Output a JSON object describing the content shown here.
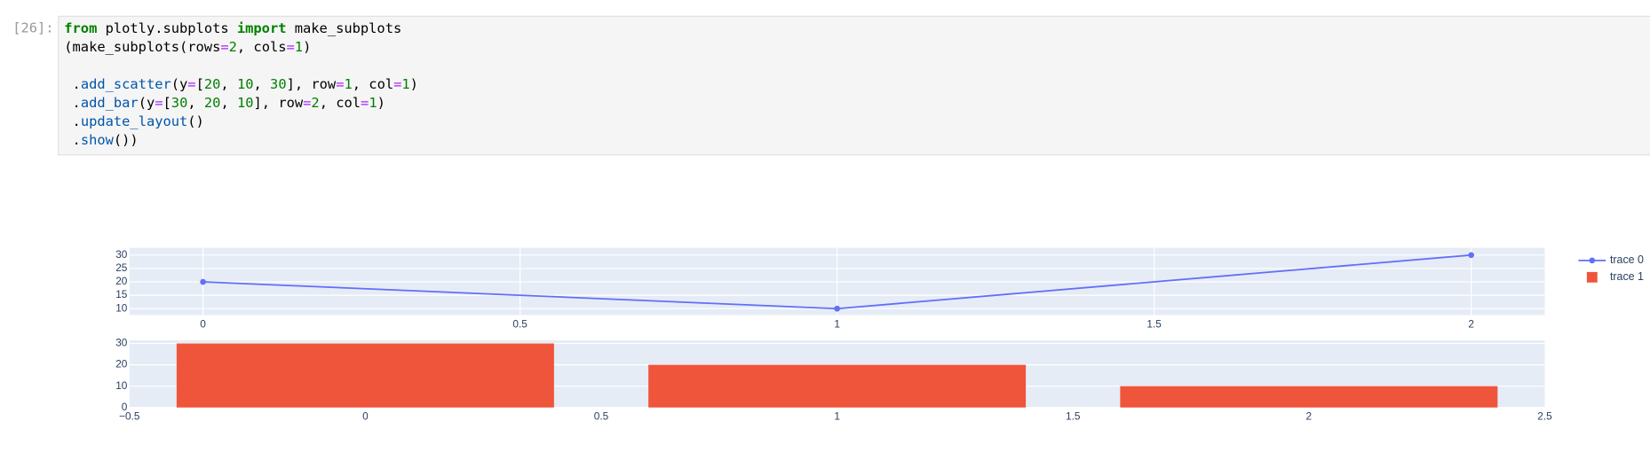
{
  "cells": [
    {
      "prompt": "[26]:",
      "lines": [
        [
          {
            "text": "from",
            "color": "#008000",
            "bold": true
          },
          {
            "text": " plotly.subplots ",
            "color": "#000000"
          },
          {
            "text": "import",
            "color": "#008000",
            "bold": true
          },
          {
            "text": " make_subplots",
            "color": "#000000"
          }
        ],
        [
          {
            "text": "(make_subplots(rows",
            "color": "#000000"
          },
          {
            "text": "=",
            "color": "#aa22ff"
          },
          {
            "text": "2",
            "color": "#008000"
          },
          {
            "text": ", cols",
            "color": "#000000"
          },
          {
            "text": "=",
            "color": "#aa22ff"
          },
          {
            "text": "1",
            "color": "#008000"
          },
          {
            "text": ")",
            "color": "#000000"
          }
        ],
        [],
        [
          {
            "text": " .",
            "color": "#000000"
          },
          {
            "text": "add_scatter",
            "color": "#0055aa"
          },
          {
            "text": "(y",
            "color": "#000000"
          },
          {
            "text": "=",
            "color": "#aa22ff"
          },
          {
            "text": "[",
            "color": "#000000"
          },
          {
            "text": "20",
            "color": "#008000"
          },
          {
            "text": ", ",
            "color": "#000000"
          },
          {
            "text": "10",
            "color": "#008000"
          },
          {
            "text": ", ",
            "color": "#000000"
          },
          {
            "text": "30",
            "color": "#008000"
          },
          {
            "text": "], row",
            "color": "#000000"
          },
          {
            "text": "=",
            "color": "#aa22ff"
          },
          {
            "text": "1",
            "color": "#008000"
          },
          {
            "text": ", col",
            "color": "#000000"
          },
          {
            "text": "=",
            "color": "#aa22ff"
          },
          {
            "text": "1",
            "color": "#008000"
          },
          {
            "text": ")",
            "color": "#000000"
          }
        ],
        [
          {
            "text": " .",
            "color": "#000000"
          },
          {
            "text": "add_bar",
            "color": "#0055aa"
          },
          {
            "text": "(y",
            "color": "#000000"
          },
          {
            "text": "=",
            "color": "#aa22ff"
          },
          {
            "text": "[",
            "color": "#000000"
          },
          {
            "text": "30",
            "color": "#008000"
          },
          {
            "text": ", ",
            "color": "#000000"
          },
          {
            "text": "20",
            "color": "#008000"
          },
          {
            "text": ", ",
            "color": "#000000"
          },
          {
            "text": "10",
            "color": "#008000"
          },
          {
            "text": "], row",
            "color": "#000000"
          },
          {
            "text": "=",
            "color": "#aa22ff"
          },
          {
            "text": "2",
            "color": "#008000"
          },
          {
            "text": ", col",
            "color": "#000000"
          },
          {
            "text": "=",
            "color": "#aa22ff"
          },
          {
            "text": "1",
            "color": "#008000"
          },
          {
            "text": ")",
            "color": "#000000"
          }
        ],
        [
          {
            "text": " .",
            "color": "#000000"
          },
          {
            "text": "update_layout",
            "color": "#0055aa"
          },
          {
            "text": "()",
            "color": "#000000"
          }
        ],
        [
          {
            "text": " .",
            "color": "#000000"
          },
          {
            "text": "show",
            "color": "#0055aa"
          },
          {
            "text": "())",
            "color": "#000000"
          }
        ]
      ]
    }
  ],
  "chart_data": [
    {
      "type": "line",
      "x": [
        0,
        1,
        2
      ],
      "series": [
        {
          "name": "trace 0",
          "color": "#636efa",
          "values": [
            20,
            10,
            30
          ]
        }
      ],
      "xlim": [
        -0.116,
        2.116
      ],
      "xticks": [
        0,
        0.5,
        1,
        1.5,
        2
      ],
      "ylim": [
        7.6,
        32.7
      ],
      "yticks": [
        10,
        15,
        20,
        25,
        30
      ],
      "grid": true
    },
    {
      "type": "bar",
      "x": [
        0,
        1,
        2
      ],
      "series": [
        {
          "name": "trace 1",
          "color": "#ef553b",
          "values": [
            30,
            20,
            10
          ]
        }
      ],
      "xlim": [
        -0.5,
        2.5
      ],
      "xticks": [
        {
          "value": -0.5,
          "label": "−0.5"
        },
        0,
        0.5,
        1,
        1.5,
        2,
        2.5
      ],
      "ylim": [
        0,
        31.5
      ],
      "yticks": [
        0,
        10,
        20,
        30
      ],
      "grid": true
    }
  ]
}
